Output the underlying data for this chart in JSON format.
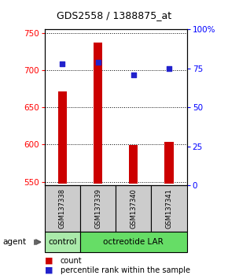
{
  "title": "GDS2558 / 1388875_at",
  "samples": [
    "GSM137338",
    "GSM137339",
    "GSM137340",
    "GSM137341"
  ],
  "counts": [
    672,
    737,
    599,
    604
  ],
  "percentiles": [
    78,
    79,
    71,
    75
  ],
  "ylim_left": [
    545,
    755
  ],
  "ylim_right": [
    0,
    100
  ],
  "yticks_left": [
    550,
    600,
    650,
    700,
    750
  ],
  "yticks_right": [
    0,
    25,
    50,
    75,
    100
  ],
  "yticklabels_right": [
    "0",
    "25",
    "50",
    "75",
    "100%"
  ],
  "bar_color": "#CC0000",
  "dot_color": "#2222CC",
  "bar_bottom": 548,
  "bar_width": 0.25,
  "control_color": "#AAEAAA",
  "oct_color": "#66DD66",
  "legend_bar_label": "count",
  "legend_dot_label": "percentile rank within the sample",
  "agent_label": "agent",
  "sample_box_color": "#CCCCCC",
  "title_fontsize": 9,
  "tick_fontsize": 7.5,
  "sample_fontsize": 6,
  "agent_fontsize": 7.5,
  "legend_fontsize": 7
}
